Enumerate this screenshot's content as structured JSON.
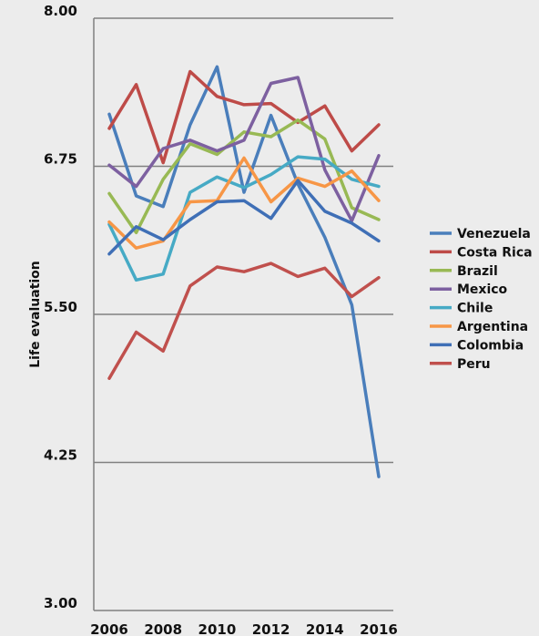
{
  "chart_data": {
    "type": "line",
    "title": "",
    "xlabel": "",
    "ylabel": "Life evaluation",
    "x": [
      2006,
      2007,
      2008,
      2009,
      2010,
      2011,
      2012,
      2013,
      2014,
      2015,
      2016
    ],
    "x_tick_labels": [
      "2006",
      "2008",
      "2010",
      "2012",
      "2014",
      "2016"
    ],
    "y_tick_labels": [
      "3.00",
      "4.25",
      "5.50",
      "6.75",
      "8.00"
    ],
    "ylim": [
      3.0,
      8.0
    ],
    "xlim": [
      2006,
      2016
    ],
    "grid": "horizontal",
    "legend_position": "right",
    "series": [
      {
        "name": "Venezuela",
        "color": "#4a7ebb",
        "values": [
          7.19,
          6.5,
          6.41,
          7.1,
          7.59,
          6.53,
          7.18,
          6.6,
          6.15,
          5.58,
          4.13
        ]
      },
      {
        "name": "Costa Rica",
        "color": "#be4b48",
        "values": [
          7.07,
          7.44,
          6.78,
          7.55,
          7.34,
          7.27,
          7.28,
          7.12,
          7.26,
          6.88,
          7.1
        ]
      },
      {
        "name": "Brazil",
        "color": "#98b954",
        "values": [
          6.52,
          6.19,
          6.64,
          6.94,
          6.85,
          7.04,
          7.0,
          7.14,
          6.98,
          6.4,
          6.3
        ]
      },
      {
        "name": "Mexico",
        "color": "#7d60a0",
        "values": [
          6.76,
          6.58,
          6.9,
          6.97,
          6.88,
          6.97,
          7.45,
          7.5,
          6.72,
          6.29,
          6.84
        ]
      },
      {
        "name": "Chile",
        "color": "#46aac5",
        "values": [
          6.26,
          5.79,
          5.84,
          6.53,
          6.66,
          6.57,
          6.68,
          6.83,
          6.81,
          6.64,
          6.58
        ]
      },
      {
        "name": "Argentina",
        "color": "#f79646",
        "values": [
          6.28,
          6.06,
          6.12,
          6.45,
          6.46,
          6.82,
          6.45,
          6.65,
          6.58,
          6.71,
          6.46
        ]
      },
      {
        "name": "Colombia",
        "color": "#3f6fb6",
        "values": [
          6.01,
          6.24,
          6.13,
          6.3,
          6.45,
          6.46,
          6.31,
          6.63,
          6.37,
          6.27,
          6.12
        ]
      },
      {
        "name": "Peru",
        "color": "#c0504d",
        "values": [
          4.96,
          5.35,
          5.19,
          5.74,
          5.9,
          5.86,
          5.93,
          5.82,
          5.89,
          5.65,
          5.81
        ]
      }
    ]
  }
}
